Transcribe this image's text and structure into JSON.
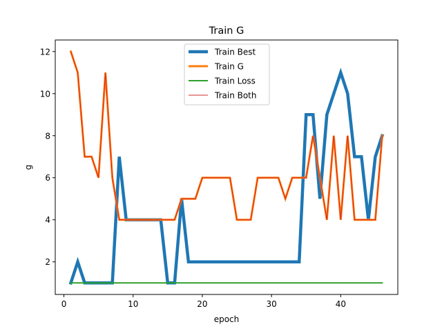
{
  "chart_data": {
    "type": "line",
    "title": "Train G",
    "xlabel": "epoch",
    "ylabel": "g",
    "xlim": [
      -1.25,
      48.25
    ],
    "ylim": [
      0.45,
      12.55
    ],
    "xticks": [
      0,
      10,
      20,
      30,
      40
    ],
    "yticks": [
      2,
      4,
      6,
      8,
      10,
      12
    ],
    "grid": false,
    "legend_position": "upper center",
    "x": [
      1,
      2,
      3,
      4,
      5,
      6,
      7,
      8,
      9,
      10,
      11,
      12,
      13,
      14,
      15,
      16,
      17,
      18,
      19,
      20,
      21,
      22,
      23,
      24,
      25,
      26,
      27,
      28,
      29,
      30,
      31,
      32,
      33,
      34,
      35,
      36,
      37,
      38,
      39,
      40,
      41,
      42,
      43,
      44,
      45,
      46
    ],
    "series": [
      {
        "name": "Train Best",
        "color": "#1f77b4",
        "width": 4.5,
        "values": [
          1,
          2,
          1,
          1,
          1,
          1,
          1,
          7,
          4,
          4,
          4,
          4,
          4,
          4,
          1,
          1,
          5,
          2,
          2,
          2,
          2,
          2,
          2,
          2,
          2,
          2,
          2,
          2,
          2,
          2,
          2,
          2,
          2,
          2,
          9,
          9,
          5,
          9,
          10,
          11,
          10,
          7,
          7,
          4,
          7,
          8
        ]
      },
      {
        "name": "Train G",
        "color": "#ff7f0e",
        "width": 3,
        "values": [
          12,
          11,
          7,
          7,
          6,
          11,
          6,
          4,
          4,
          4,
          4,
          4,
          4,
          4,
          4,
          4,
          5,
          5,
          5,
          6,
          6,
          6,
          6,
          6,
          4,
          4,
          4,
          6,
          6,
          6,
          6,
          5,
          6,
          6,
          6,
          8,
          6,
          4,
          8,
          4,
          8,
          4,
          4,
          4,
          4,
          8
        ]
      },
      {
        "name": "Train Loss",
        "color": "#2ca02c",
        "width": 2,
        "values": [
          1,
          1,
          1,
          1,
          1,
          1,
          1,
          1,
          1,
          1,
          1,
          1,
          1,
          1,
          1,
          1,
          1,
          1,
          1,
          1,
          1,
          1,
          1,
          1,
          1,
          1,
          1,
          1,
          1,
          1,
          1,
          1,
          1,
          1,
          1,
          1,
          1,
          1,
          1,
          1,
          1,
          1,
          1,
          1,
          1,
          1
        ]
      },
      {
        "name": "Train Both",
        "color": "#d62728",
        "width": 1,
        "values": [
          12,
          11,
          7,
          7,
          6,
          11,
          6,
          4,
          4,
          4,
          4,
          4,
          4,
          4,
          4,
          4,
          5,
          5,
          5,
          6,
          6,
          6,
          6,
          6,
          4,
          4,
          4,
          6,
          6,
          6,
          6,
          5,
          6,
          6,
          6,
          8,
          6,
          4,
          8,
          4,
          8,
          4,
          4,
          4,
          4,
          8
        ]
      }
    ]
  }
}
